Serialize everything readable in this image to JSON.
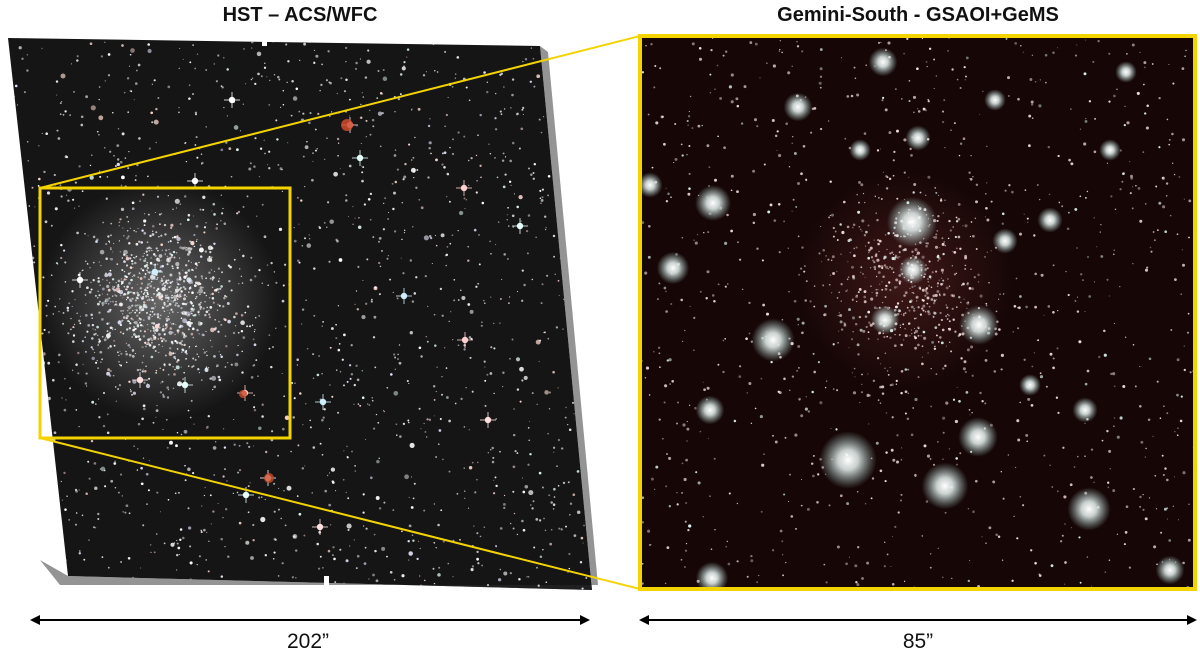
{
  "panels": {
    "left": {
      "title": "HST – ACS/WFC",
      "scale_label": "202”"
    },
    "right": {
      "title": "Gemini-South - GSAOI+GeMS",
      "scale_label": "85”"
    }
  },
  "colors": {
    "zoom_box": "#f3d400",
    "sky_left": "#141414",
    "sky_right": "#160606"
  }
}
